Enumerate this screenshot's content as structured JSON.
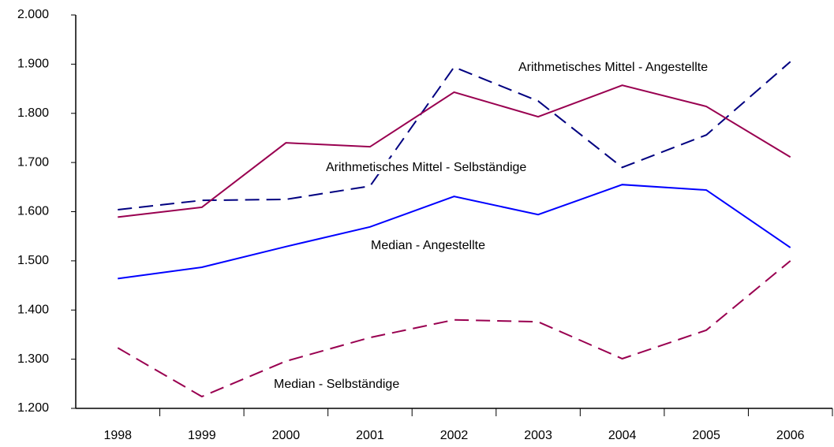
{
  "chart_data": {
    "type": "line",
    "categories": [
      "1998",
      "1999",
      "2000",
      "2001",
      "2002",
      "2003",
      "2004",
      "2005",
      "2006"
    ],
    "series": [
      {
        "name": "Arithmetisches Mittel - Angestellte",
        "color": "#000080",
        "dashed": true,
        "values": [
          1604,
          1623,
          1625,
          1652,
          1894,
          1825,
          1690,
          1756,
          1905
        ]
      },
      {
        "name": "Arithmetisches Mittel - Selbständige",
        "color": "#990050",
        "dashed": false,
        "values": [
          1589,
          1609,
          1740,
          1732,
          1843,
          1793,
          1857,
          1814,
          1711
        ]
      },
      {
        "name": "Median - Angestellte",
        "color": "#0000ff",
        "dashed": false,
        "values": [
          1464,
          1487,
          1529,
          1569,
          1631,
          1594,
          1655,
          1644,
          1527
        ]
      },
      {
        "name": "Median - Selbständige",
        "color": "#990050",
        "dashed": true,
        "values": [
          1323,
          1224,
          1296,
          1344,
          1380,
          1376,
          1301,
          1359,
          1500
        ]
      }
    ],
    "ylim": [
      1200,
      2000
    ],
    "yticks": [
      {
        "value": 1200,
        "label": "1.200"
      },
      {
        "value": 1300,
        "label": "1.300"
      },
      {
        "value": 1400,
        "label": "1.400"
      },
      {
        "value": 1500,
        "label": "1.500"
      },
      {
        "value": 1600,
        "label": "1.600"
      },
      {
        "value": 1700,
        "label": "1.700"
      },
      {
        "value": 1800,
        "label": "1.800"
      },
      {
        "value": 1900,
        "label": "1.900"
      },
      {
        "value": 2000,
        "label": "2.000"
      }
    ],
    "grid": false
  }
}
